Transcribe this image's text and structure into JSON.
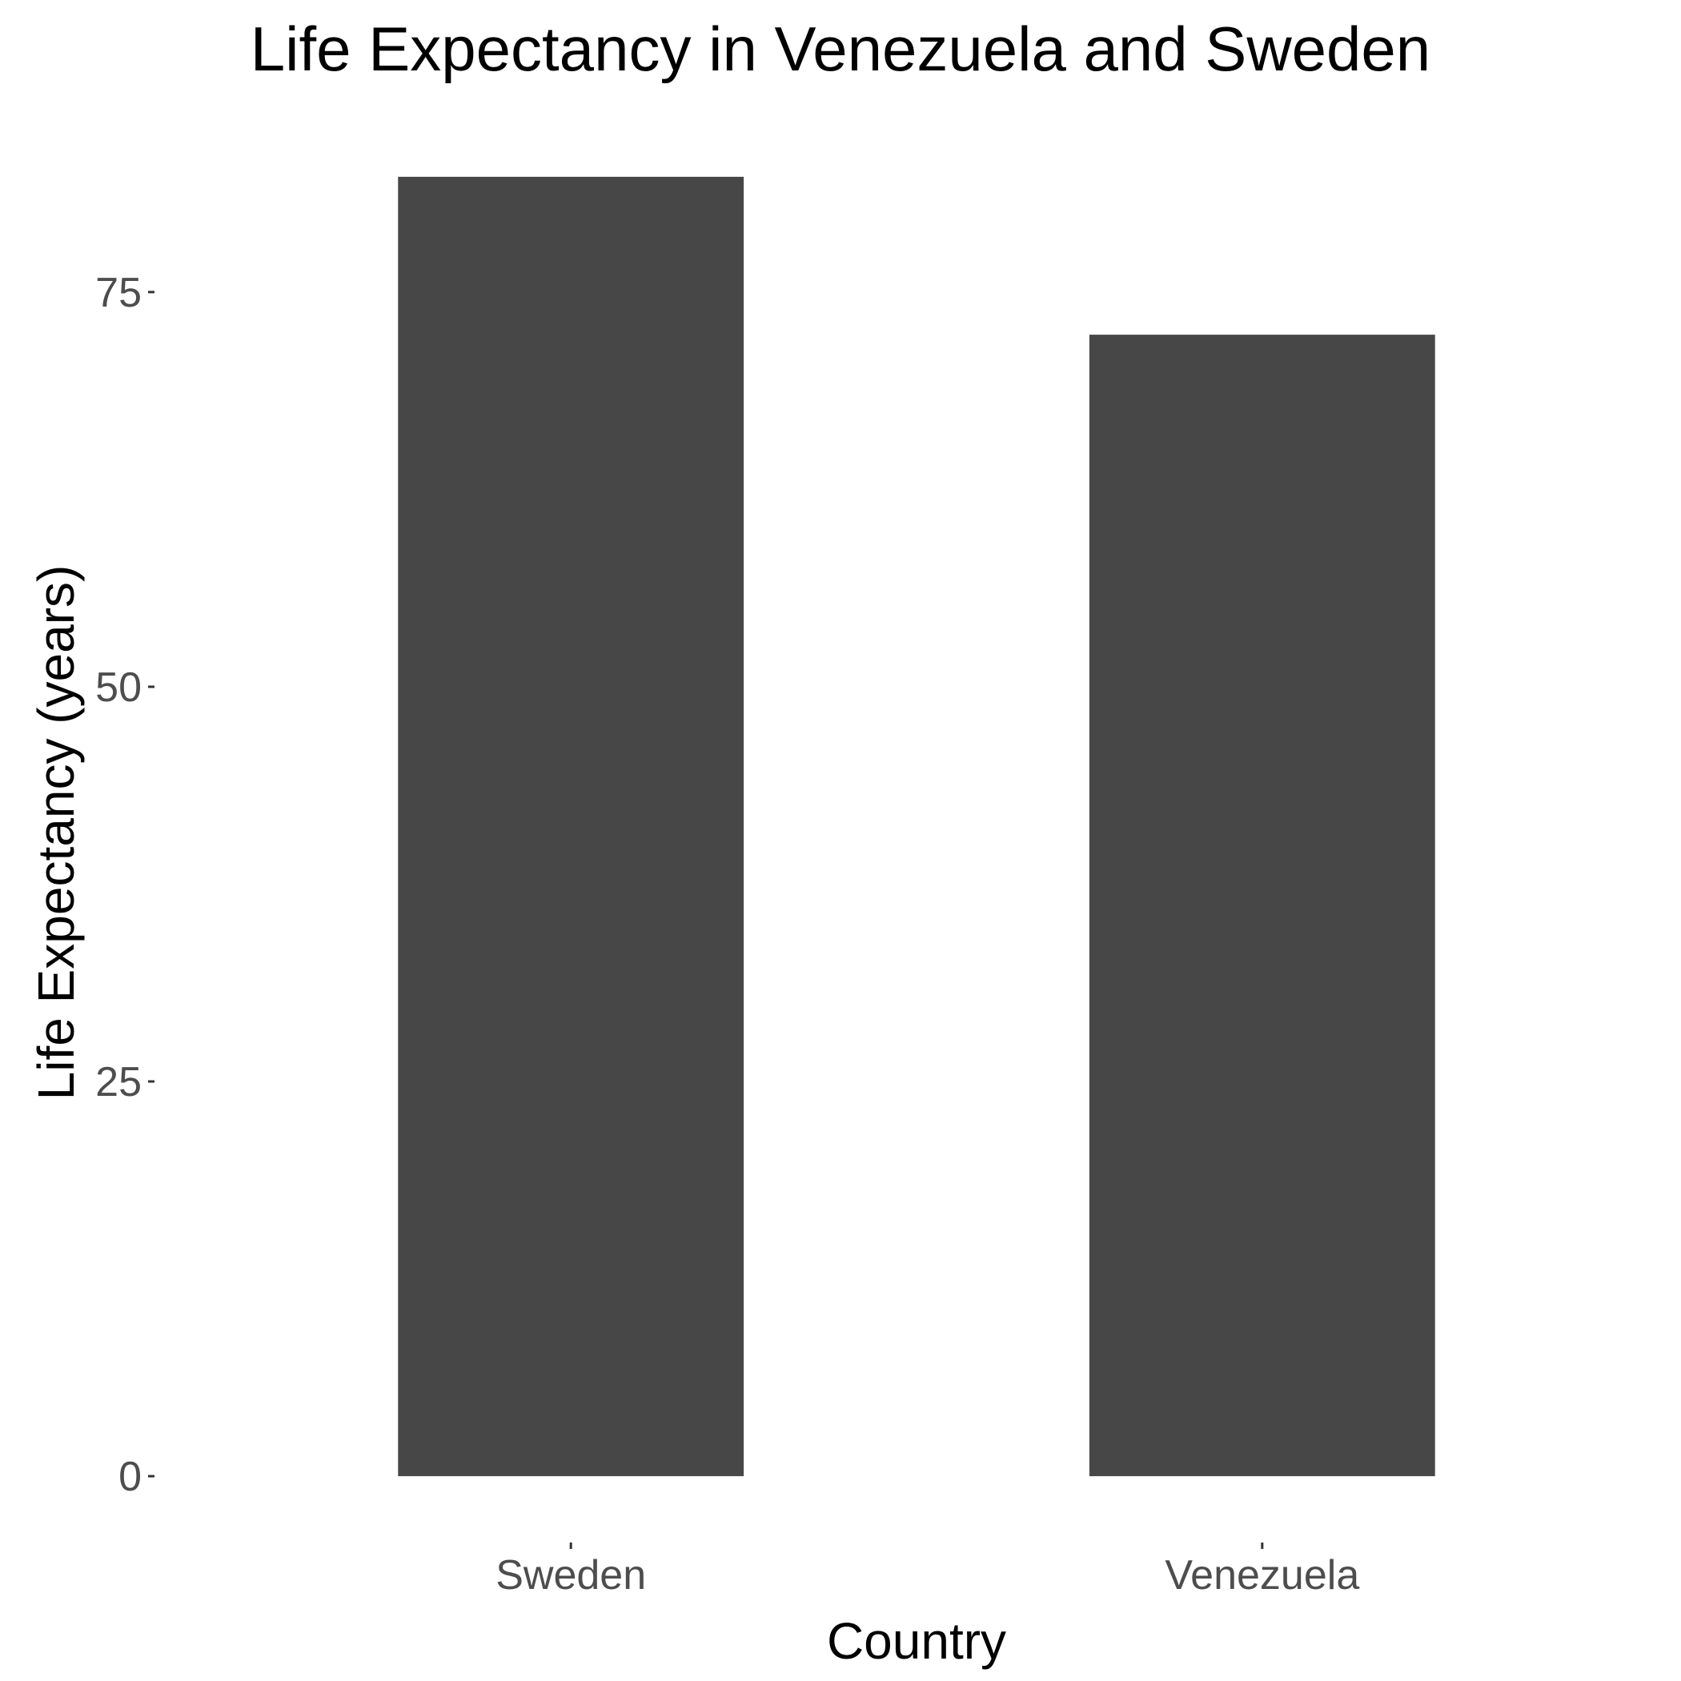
{
  "chart_data": {
    "type": "bar",
    "title": "Life Expectancy in Venezuela and Sweden",
    "xlabel": "Country",
    "ylabel": "Life Expectancy (years)",
    "categories": [
      "Sweden",
      "Venezuela"
    ],
    "values": [
      82.3,
      72.3
    ],
    "ylim": [
      -4.1,
      86.4
    ],
    "yticks": [
      0,
      25,
      50,
      75
    ],
    "ytick_labels": [
      "0",
      "25",
      "50",
      "75"
    ],
    "grid": false,
    "legend": "none",
    "bar_color": "#474747"
  }
}
